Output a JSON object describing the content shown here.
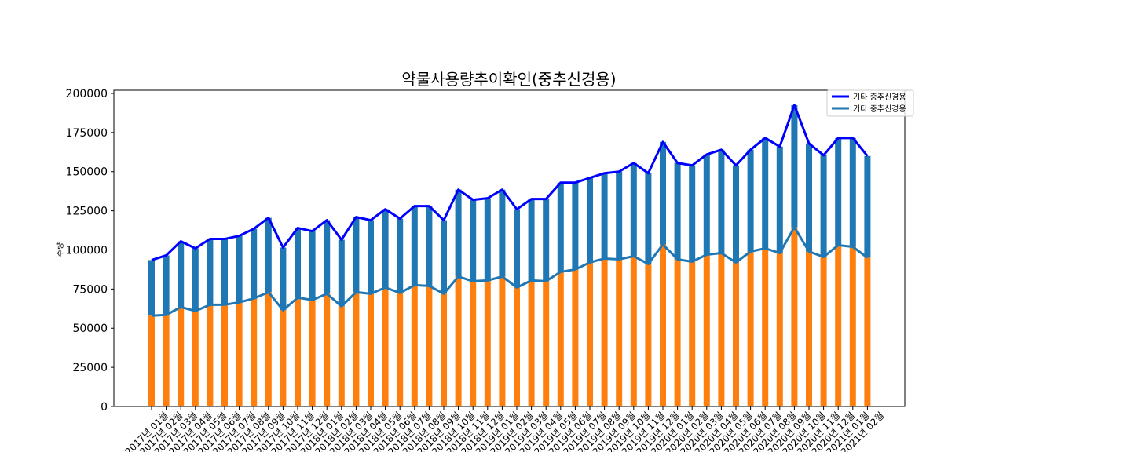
{
  "chart_data": {
    "type": "bar",
    "title": "약물사용량추이확인(중추신경용)",
    "xlabel": "",
    "ylabel": "수량",
    "ylim": [
      0,
      202000
    ],
    "yticks": [
      0,
      25000,
      50000,
      75000,
      100000,
      125000,
      150000,
      175000,
      200000
    ],
    "grid": false,
    "legend_position": "top-right",
    "categories": [
      "2017년 01월",
      "2017년 02월",
      "2017년 03월",
      "2017년 04월",
      "2017년 05월",
      "2017년 06월",
      "2017년 07월",
      "2017년 08월",
      "2017년 09월",
      "2017년 10월",
      "2017년 11월",
      "2017년 12월",
      "2018년 01월",
      "2018년 02월",
      "2018년 03월",
      "2018년 04월",
      "2018년 05월",
      "2018년 06월",
      "2018년 07월",
      "2018년 08월",
      "2018년 09월",
      "2018년 10월",
      "2018년 11월",
      "2018년 12월",
      "2019년 01월",
      "2019년 02월",
      "2019년 03월",
      "2019년 04월",
      "2019년 05월",
      "2019년 06월",
      "2019년 07월",
      "2019년 08월",
      "2019년 09월",
      "2019년 10월",
      "2019년 11월",
      "2019년 12월",
      "2020년 01월",
      "2020년 02월",
      "2020년 03월",
      "2020년 04월",
      "2020년 05월",
      "2020년 06월",
      "2020년 07월",
      "2020년 08월",
      "2020년 09월",
      "2020년 10월",
      "2020년 11월",
      "2020년 12월",
      "2021년 01월",
      "2021년 02월"
    ],
    "series": [
      {
        "name": "기타 중추신경용",
        "kind": "line",
        "color": "#0000ff",
        "values": [
          93500,
          96500,
          105500,
          101000,
          107000,
          107000,
          109000,
          113500,
          120500,
          101500,
          114000,
          112000,
          119000,
          106500,
          121000,
          119000,
          126000,
          120000,
          128000,
          128000,
          119000,
          138500,
          132000,
          133000,
          138500,
          126000,
          132500,
          132500,
          143000,
          143000,
          146000,
          149000,
          150000,
          155500,
          149000,
          169000,
          155500,
          154000,
          161000,
          164000,
          154000,
          164000,
          171500,
          166000,
          192500,
          168000,
          160500,
          171500,
          171500,
          160000
        ]
      },
      {
        "name": "기타 중추신경용",
        "kind": "line",
        "color": "#1f77b4",
        "values": [
          58000,
          58500,
          63500,
          61000,
          65000,
          65000,
          66500,
          69000,
          73000,
          61500,
          69500,
          68000,
          72000,
          64000,
          73000,
          72000,
          76000,
          72500,
          77500,
          77000,
          72000,
          83000,
          80000,
          80500,
          83000,
          76000,
          80500,
          80000,
          86000,
          87500,
          92000,
          94500,
          94000,
          96000,
          91000,
          103500,
          94000,
          92500,
          97000,
          98000,
          92000,
          99000,
          101000,
          98000,
          114500,
          99000,
          95500,
          103000,
          102000,
          95000
        ]
      }
    ]
  }
}
